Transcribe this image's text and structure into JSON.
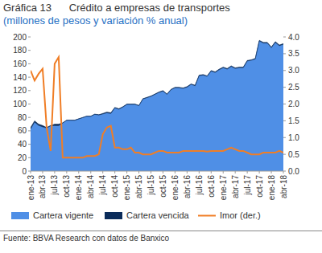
{
  "chart_data": {
    "type": "area",
    "title": "Gráfica 13      Crédito a empresas de transportes",
    "subtitle": "(millones de pesos y variación % anual)",
    "source": "Fuente: BBVA Research con datos de Banxico",
    "stacked": true,
    "grid": false,
    "legend": "bottom",
    "categories": [
      "ene-13",
      null,
      null,
      "abr-13",
      null,
      null,
      "jul-13",
      null,
      null,
      "oct-13",
      null,
      null,
      "ene-14",
      null,
      null,
      "abr-14",
      null,
      null,
      "jul-14",
      null,
      null,
      "oct-14",
      null,
      null,
      "ene-15",
      null,
      null,
      "abr-15",
      null,
      null,
      "jul-15",
      null,
      null,
      "oct-15",
      null,
      null,
      "ene-16",
      null,
      null,
      "abr-16",
      null,
      null,
      "jul-16",
      null,
      null,
      "oct-16",
      null,
      null,
      "ene-17",
      null,
      null,
      "abr-17",
      null,
      null,
      "jul-17",
      null,
      null,
      "oct-17",
      null,
      null,
      "ene-18",
      null,
      null,
      "abr-18"
    ],
    "ylim": [
      0,
      200
    ],
    "yticks": [
      0,
      20,
      40,
      60,
      80,
      100,
      120,
      140,
      160,
      180,
      200
    ],
    "y2lim": [
      0,
      4
    ],
    "y2ticks": [
      {
        "value": 0,
        "label": "0.0"
      },
      {
        "value": 0.5,
        "label": "0.5"
      },
      {
        "value": 1,
        "label": "1.0"
      },
      {
        "value": 1.5,
        "label": "1.5"
      },
      {
        "value": 2,
        "label": "2.0"
      },
      {
        "value": 2.5,
        "label": "2.5"
      },
      {
        "value": 3,
        "label": "3.0"
      },
      {
        "value": 3.5,
        "label": "3.5"
      },
      {
        "value": 4,
        "label": "4.0"
      }
    ],
    "series": [
      {
        "name": "Cartera vigente",
        "type": "area",
        "color": "#4f8fe6",
        "values": [
          63.0,
          73.0,
          68.0,
          65.9,
          64.2,
          67.6,
          67.8,
          67.6,
          71.7,
          75.7,
          75.7,
          75.7,
          77.7,
          79.7,
          81.6,
          81.6,
          84.6,
          83.6,
          85.1,
          86.9,
          85.8,
          94.3,
          92.3,
          95.4,
          99.3,
          99.3,
          99.4,
          97.5,
          107.5,
          109.4,
          111.4,
          114.4,
          117.3,
          119.3,
          114.4,
          121.3,
          124.3,
          124.3,
          123.3,
          125.2,
          129.2,
          127.2,
          142.1,
          143.1,
          141.2,
          149.1,
          147.1,
          151.1,
          154.1,
          152.0,
          155.9,
          153.0,
          154.1,
          154.1,
          164.1,
          165.2,
          167.2,
          194.0,
          190.9,
          190.9,
          184.0,
          191.9,
          186.9,
          189.0
        ]
      },
      {
        "name": "Cartera vencida",
        "type": "area",
        "color": "#0b2c5a",
        "values": [
          2.0,
          2.0,
          2.0,
          2.1,
          0.8,
          0.4,
          2.2,
          2.4,
          0.3,
          0.3,
          0.3,
          0.3,
          0.3,
          0.3,
          0.4,
          0.4,
          0.4,
          0.4,
          0.9,
          1.1,
          1.2,
          0.7,
          0.7,
          0.6,
          0.7,
          0.7,
          0.6,
          0.5,
          0.5,
          0.6,
          0.6,
          0.6,
          0.7,
          0.7,
          0.6,
          0.7,
          0.7,
          0.7,
          0.7,
          0.8,
          0.8,
          0.8,
          0.9,
          0.9,
          0.8,
          0.9,
          0.9,
          0.9,
          0.9,
          1.0,
          1.1,
          1.0,
          0.9,
          0.9,
          0.9,
          0.8,
          0.8,
          1.0,
          1.1,
          1.1,
          1.0,
          1.1,
          1.1,
          1.0
        ]
      },
      {
        "name": "Imor (der.)",
        "type": "line",
        "axis": "y2",
        "color": "#f07e26",
        "line_style": "solid",
        "values": [
          3.0,
          2.7,
          2.9,
          3.05,
          1.3,
          0.6,
          3.2,
          3.4,
          0.4,
          0.4,
          0.4,
          0.4,
          0.4,
          0.4,
          0.45,
          0.45,
          0.45,
          0.5,
          1.1,
          1.3,
          1.35,
          0.7,
          0.7,
          0.65,
          0.65,
          0.7,
          0.55,
          0.55,
          0.5,
          0.5,
          0.5,
          0.55,
          0.6,
          0.6,
          0.55,
          0.55,
          0.55,
          0.55,
          0.6,
          0.6,
          0.6,
          0.6,
          0.6,
          0.6,
          0.58,
          0.6,
          0.6,
          0.6,
          0.6,
          0.65,
          0.7,
          0.65,
          0.6,
          0.6,
          0.55,
          0.5,
          0.5,
          0.5,
          0.55,
          0.55,
          0.55,
          0.55,
          0.6,
          0.55
        ]
      }
    ]
  }
}
